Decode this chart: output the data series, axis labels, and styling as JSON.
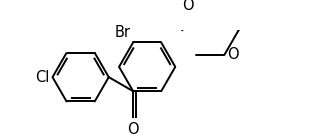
{
  "bg_color": "#ffffff",
  "bond_color": "#000000",
  "atom_color": "#000000",
  "lw": 1.4,
  "dbo": 0.055,
  "fs": 10.5,
  "xlim": [
    -2.3,
    2.4
  ],
  "ylim": [
    -0.95,
    0.95
  ]
}
